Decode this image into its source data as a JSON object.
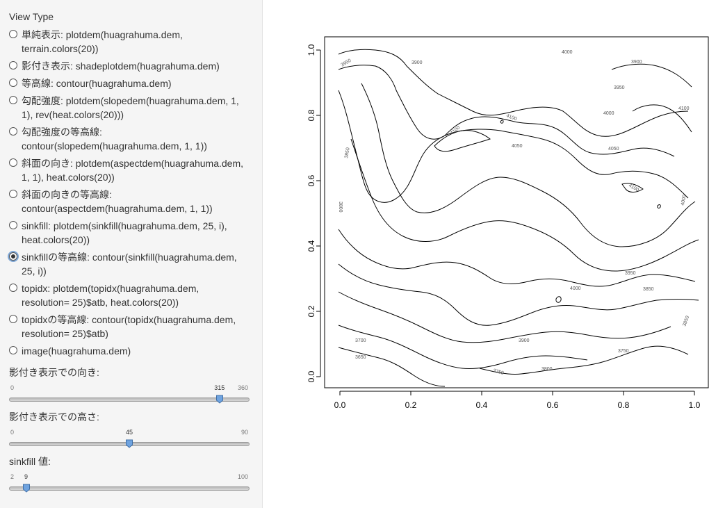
{
  "sidebar": {
    "view_type_label": "View Type",
    "options": [
      "単純表示: plotdem(huagrahuma.dem,\nterrain.colors(20))",
      "影付き表示: shadeplotdem(huagrahuma.dem)",
      "等高線: contour(huagrahuma.dem)",
      "勾配強度: plotdem(slopedem(huagrahuma.dem, 1,\n1), rev(heat.colors(20)))",
      "勾配強度の等高線:\ncontour(slopedem(huagrahuma.dem, 1, 1))",
      "斜面の向き: plotdem(aspectdem(huagrahuma.dem,\n1, 1), heat.colors(20))",
      "斜面の向きの等高線:\ncontour(aspectdem(huagrahuma.dem, 1, 1))",
      "sinkfill: plotdem(sinkfill(huagrahuma.dem, 25, i),\nheat.colors(20))",
      "sinkfillの等高線: contour(sinkfill(huagrahuma.dem,\n25, i))",
      "topidx: plotdem(topidx(huagrahuma.dem,\nresolution= 25)$atb, heat.colors(20))",
      "topidxの等高線: contour(topidx(huagrahuma.dem,\nresolution= 25)$atb)",
      "image(huagrahuma.dem)"
    ],
    "selected_index": 8,
    "sliders": [
      {
        "label": "影付き表示での向き:",
        "min": "0",
        "max": "360",
        "value": "315"
      },
      {
        "label": "影付き表示での高さ:",
        "min": "0",
        "max": "90",
        "value": "45"
      },
      {
        "label": "sinkfill 値:",
        "min": "2",
        "max": "100",
        "value": "9"
      }
    ]
  },
  "plot": {
    "x_ticks": [
      "0.0",
      "0.2",
      "0.4",
      "0.6",
      "0.8",
      "1.0"
    ],
    "y_ticks": [
      "0.0",
      "0.2",
      "0.4",
      "0.6",
      "0.8",
      "1.0"
    ],
    "contour_labels": [
      "3950",
      "3900",
      "4000",
      "3900",
      "3950",
      "4000",
      "4100",
      "4050",
      "4100",
      "4050",
      "4100",
      "3850",
      "3800",
      "4100",
      "4000",
      "3950",
      "3850",
      "4000",
      "3900",
      "3700",
      "3650",
      "3750",
      "3750",
      "3800",
      "3850"
    ]
  }
}
